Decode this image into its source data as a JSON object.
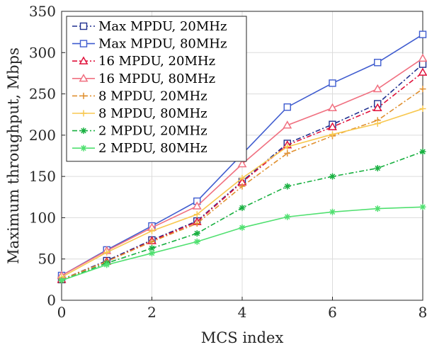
{
  "chart_data": {
    "type": "line",
    "title": "",
    "xlabel": "MCS index",
    "ylabel": "Maximum throughput, Mbps",
    "xlim": [
      0,
      8
    ],
    "ylim": [
      0,
      350
    ],
    "xticks": [
      0,
      2,
      4,
      6,
      8
    ],
    "yticks": [
      0,
      50,
      100,
      150,
      200,
      250,
      300,
      350
    ],
    "grid": true,
    "legend_position": "top-left",
    "x": [
      0,
      1,
      2,
      3,
      4,
      5,
      6,
      7,
      8
    ],
    "series": [
      {
        "name": "Max MPDU, 20MHz",
        "color": "#1f2f8f",
        "dash": "dashdot",
        "marker": "square",
        "values": [
          25,
          48,
          73,
          96,
          144,
          190,
          213,
          238,
          286
        ]
      },
      {
        "name": "Max MPDU, 80MHz",
        "color": "#3f5ccf",
        "dash": "solid",
        "marker": "square",
        "values": [
          30,
          61,
          90,
          120,
          177,
          234,
          263,
          288,
          322
        ]
      },
      {
        "name": "16 MPDU, 20MHz",
        "color": "#e0103a",
        "dash": "dashdot",
        "marker": "triangle",
        "values": [
          25,
          47,
          72,
          95,
          143,
          188,
          210,
          233,
          276
        ]
      },
      {
        "name": "16 MPDU, 80MHz",
        "color": "#f07080",
        "dash": "solid",
        "marker": "triangle",
        "values": [
          30,
          60,
          88,
          114,
          165,
          212,
          233,
          256,
          293
        ]
      },
      {
        "name": "8 MPDU, 20MHz",
        "color": "#e09030",
        "dash": "dashdot",
        "marker": "plus",
        "values": [
          25,
          47,
          71,
          93,
          138,
          178,
          199,
          218,
          256
        ]
      },
      {
        "name": "8 MPDU, 80MHz",
        "color": "#f8c850",
        "dash": "solid",
        "marker": "plus",
        "values": [
          28,
          58,
          84,
          104,
          148,
          186,
          201,
          214,
          232
        ]
      },
      {
        "name": "2 MPDU, 20MHz",
        "color": "#18b040",
        "dash": "dashdot",
        "marker": "asterisk",
        "values": [
          24,
          45,
          63,
          81,
          112,
          138,
          150,
          160,
          180
        ]
      },
      {
        "name": "2 MPDU, 80MHz",
        "color": "#50e070",
        "dash": "solid",
        "marker": "asterisk",
        "values": [
          24,
          43,
          57,
          71,
          88,
          101,
          107,
          111,
          113
        ]
      }
    ]
  }
}
